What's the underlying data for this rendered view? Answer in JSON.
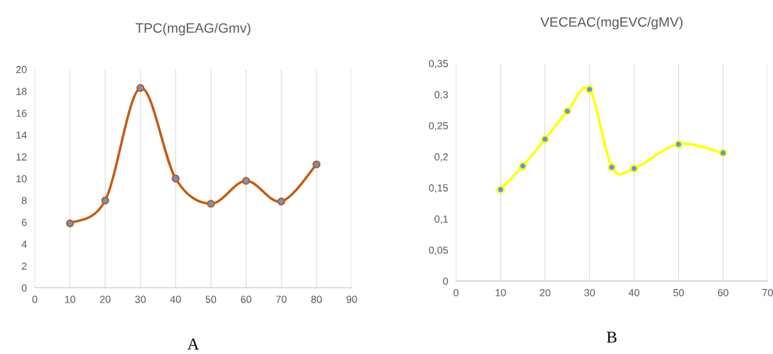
{
  "chart_data": [
    {
      "type": "line",
      "title": "TPC(mgEAG/Gmv)",
      "x": [
        10,
        20,
        30,
        40,
        50,
        60,
        70,
        80
      ],
      "series": [
        {
          "color": "#c55a11",
          "values": [
            5.9,
            8.0,
            18.3,
            10.0,
            7.7,
            9.8,
            7.9,
            11.3
          ]
        }
      ],
      "xlim": [
        0,
        90
      ],
      "xticks": [
        0,
        10,
        20,
        30,
        40,
        50,
        60,
        70,
        80,
        90
      ],
      "ylim": [
        0,
        20
      ],
      "yticks": [
        0,
        2,
        4,
        6,
        8,
        10,
        12,
        14,
        16,
        18,
        20
      ],
      "grid": "x",
      "marker": "circle",
      "line_style": "solid",
      "legend": false,
      "annotations": [
        "A"
      ]
    },
    {
      "type": "line",
      "title": "VECEAC(mgEVC/gMV)",
      "x": [
        10,
        15,
        20,
        25,
        30,
        35,
        40,
        50,
        60
      ],
      "series": [
        {
          "color": "#ffff00",
          "values": [
            0.147,
            0.185,
            0.228,
            0.273,
            0.308,
            0.183,
            0.181,
            0.22,
            0.206
          ]
        }
      ],
      "xlim": [
        0,
        70
      ],
      "xticks": [
        0,
        10,
        20,
        30,
        40,
        50,
        60,
        70
      ],
      "ylim": [
        0,
        0.35
      ],
      "yticks": [
        0,
        {
          "value": 0.05,
          "label": "0,05"
        },
        {
          "value": 0.1,
          "label": "0,1"
        },
        {
          "value": 0.15,
          "label": "0,15"
        },
        {
          "value": 0.2,
          "label": "0,2"
        },
        {
          "value": 0.25,
          "label": "0,25"
        },
        {
          "value": 0.3,
          "label": "0,3"
        },
        {
          "value": 0.35,
          "label": "0,35"
        }
      ],
      "grid": "x",
      "marker": "circle",
      "line_style": "solid",
      "legend": false,
      "annotations": [
        "B"
      ]
    }
  ]
}
